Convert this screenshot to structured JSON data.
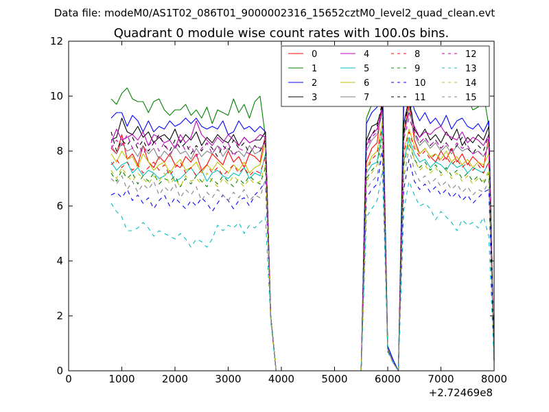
{
  "chart_data": {
    "type": "line",
    "suptitle": "Data file: modeM0/AS1T02_086T01_9000002316_15652cztM0_level2_quad_clean.evt",
    "title": "Quadrant 0 module wise count rates with 100.0s bins.",
    "xlabel": "",
    "ylabel": "",
    "xlim": [
      0,
      8000
    ],
    "ylim": [
      0,
      12
    ],
    "xticks": [
      "0",
      "1000",
      "2000",
      "3000",
      "4000",
      "5000",
      "6000",
      "7000",
      "8000"
    ],
    "yticks": [
      "0",
      "2",
      "4",
      "6",
      "8",
      "10",
      "12"
    ],
    "x_offset_label": "+2.72469e8",
    "legend_position": "top-right",
    "grid": false,
    "x": [
      800,
      900,
      1000,
      1100,
      1200,
      1300,
      1400,
      1500,
      1600,
      1700,
      1800,
      1900,
      2000,
      2100,
      2200,
      2300,
      2400,
      2500,
      2600,
      2700,
      2800,
      2900,
      3000,
      3100,
      3200,
      3300,
      3400,
      3500,
      3600,
      3700,
      3800,
      3900,
      4000,
      4500,
      5000,
      5500,
      5600,
      5700,
      5800,
      5900,
      6000,
      6100,
      6200,
      6300,
      6400,
      6500,
      6600,
      6700,
      6800,
      6900,
      7000,
      7100,
      7200,
      7300,
      7400,
      7500,
      7600,
      7700,
      7800,
      7900,
      8000
    ],
    "series": [
      {
        "name": "0",
        "color": "#ff0000",
        "style": "solid",
        "values": [
          8.1,
          7.9,
          8.6,
          7.7,
          7.9,
          7.5,
          8.2,
          7.6,
          7.4,
          7.8,
          7.6,
          7.9,
          7.5,
          7.4,
          7.8,
          7.6,
          7.9,
          7.3,
          7.5,
          7.9,
          7.7,
          7.5,
          8.0,
          7.6,
          7.8,
          7.4,
          7.9,
          7.8,
          7.6,
          8.6,
          2.0,
          0,
          0,
          0,
          0,
          0,
          7.6,
          8.1,
          8.3,
          9.8,
          0.8,
          0.3,
          0,
          8.6,
          9.8,
          8.4,
          7.9,
          8.1,
          7.8,
          7.6,
          8.0,
          7.7,
          8.1,
          7.6,
          7.9,
          7.5,
          7.8,
          7.6,
          7.4,
          8.5,
          0.4
        ]
      },
      {
        "name": "1",
        "color": "#008000",
        "style": "solid",
        "values": [
          9.9,
          9.7,
          10.1,
          10.3,
          9.9,
          9.8,
          9.8,
          9.4,
          9.8,
          9.9,
          9.5,
          9.3,
          9.5,
          9.5,
          9.7,
          9.3,
          9.5,
          9.2,
          9.6,
          9.0,
          9.5,
          9.4,
          9.3,
          9.9,
          9.4,
          9.7,
          9.2,
          9.8,
          10.0,
          8.5,
          2.0,
          0,
          0,
          0,
          0,
          0,
          9.2,
          9.7,
          10.4,
          10.7,
          0.9,
          0.4,
          0,
          10.3,
          11.4,
          10.9,
          10.2,
          10.5,
          10.0,
          10.3,
          9.8,
          10.1,
          9.9,
          10.4,
          9.7,
          9.9,
          9.5,
          9.6,
          10.1,
          8.9,
          0.4
        ]
      },
      {
        "name": "2",
        "color": "#0000ff",
        "style": "solid",
        "values": [
          9.2,
          9.4,
          9.4,
          8.9,
          9.3,
          9.1,
          8.7,
          9.1,
          8.7,
          8.9,
          8.8,
          9.1,
          8.9,
          9.0,
          9.2,
          9.0,
          9.2,
          8.9,
          8.8,
          8.9,
          8.8,
          9.1,
          8.6,
          8.7,
          9.1,
          8.8,
          8.9,
          8.7,
          8.9,
          8.7,
          2.0,
          0,
          0,
          0,
          0,
          0,
          9.0,
          9.4,
          9.6,
          10.3,
          0.9,
          0.4,
          0,
          9.6,
          10.2,
          9.5,
          9.1,
          9.4,
          9.0,
          9.2,
          8.9,
          9.3,
          8.8,
          9.1,
          9.2,
          8.9,
          8.8,
          9.0,
          8.7,
          9.1,
          0.4
        ]
      },
      {
        "name": "3",
        "color": "#000000",
        "style": "solid",
        "values": [
          8.4,
          8.5,
          9.2,
          8.7,
          8.6,
          8.9,
          8.5,
          8.7,
          8.3,
          8.5,
          8.6,
          8.4,
          8.8,
          8.3,
          8.6,
          8.4,
          8.7,
          8.2,
          8.5,
          8.3,
          8.6,
          8.4,
          8.3,
          8.6,
          8.2,
          8.5,
          8.3,
          8.4,
          8.4,
          8.7,
          2.0,
          0,
          0,
          0,
          0,
          0,
          8.4,
          8.9,
          9.0,
          9.6,
          0.8,
          0.3,
          0,
          9.0,
          9.9,
          8.8,
          8.5,
          8.8,
          8.4,
          8.6,
          8.3,
          8.7,
          8.4,
          8.8,
          8.2,
          8.5,
          8.3,
          8.6,
          8.4,
          8.9,
          0.4
        ]
      },
      {
        "name": "4",
        "color": "#bf00bf",
        "style": "solid",
        "values": [
          8.3,
          8.8,
          8.4,
          8.5,
          8.6,
          8.4,
          8.7,
          8.2,
          8.6,
          8.5,
          8.3,
          8.4,
          8.1,
          8.6,
          8.3,
          8.5,
          9.1,
          8.6,
          8.4,
          8.2,
          8.5,
          8.3,
          8.6,
          8.4,
          8.2,
          8.5,
          8.3,
          8.4,
          8.6,
          8.5,
          2.0,
          0,
          0,
          0,
          0,
          0,
          8.2,
          8.6,
          8.8,
          9.5,
          0.8,
          0.3,
          0,
          8.6,
          9.4,
          8.9,
          8.5,
          8.7,
          8.6,
          8.8,
          8.9,
          8.6,
          8.5,
          8.4,
          8.7,
          8.3,
          8.5,
          8.4,
          8.2,
          8.6,
          0.4
        ]
      },
      {
        "name": "5",
        "color": "#00bfbf",
        "style": "solid",
        "values": [
          7.6,
          7.3,
          7.5,
          7.6,
          7.2,
          7.4,
          7.1,
          7.3,
          7.2,
          7.0,
          7.1,
          7.3,
          6.9,
          7.0,
          7.2,
          7.4,
          7.1,
          7.3,
          6.9,
          7.2,
          7.3,
          7.1,
          7.0,
          7.2,
          7.1,
          7.4,
          7.0,
          7.2,
          7.1,
          7.9,
          2.0,
          0,
          0,
          0,
          0,
          0,
          7.2,
          7.5,
          7.6,
          8.8,
          0.8,
          0.3,
          0,
          7.6,
          8.5,
          7.9,
          7.6,
          7.7,
          7.4,
          7.6,
          7.5,
          7.3,
          7.6,
          7.4,
          7.5,
          7.2,
          7.4,
          7.3,
          7.2,
          7.6,
          0.4
        ]
      },
      {
        "name": "6",
        "color": "#bfbf00",
        "style": "solid",
        "values": [
          7.9,
          7.6,
          8.0,
          7.7,
          7.8,
          7.4,
          7.9,
          7.6,
          7.3,
          7.5,
          7.6,
          7.2,
          7.5,
          7.7,
          7.3,
          7.4,
          7.6,
          7.2,
          7.5,
          7.3,
          7.6,
          7.4,
          7.2,
          7.5,
          7.3,
          7.6,
          7.2,
          7.4,
          7.5,
          8.3,
          2.0,
          0,
          0,
          0,
          0,
          0,
          7.4,
          7.8,
          8.0,
          9.1,
          0.8,
          0.3,
          0,
          8.0,
          8.8,
          8.2,
          7.9,
          8.1,
          7.8,
          7.9,
          7.7,
          8.0,
          7.6,
          7.8,
          7.5,
          7.7,
          7.4,
          7.6,
          7.5,
          7.9,
          0.4
        ]
      },
      {
        "name": "7",
        "color": "#808080",
        "style": "solid",
        "values": [
          8.2,
          7.9,
          8.3,
          8.0,
          8.1,
          7.8,
          8.2,
          7.9,
          8.1,
          7.7,
          8.0,
          7.8,
          8.2,
          7.9,
          8.0,
          7.7,
          8.1,
          7.8,
          8.0,
          7.9,
          8.2,
          7.8,
          8.1,
          7.9,
          8.0,
          7.8,
          8.2,
          7.9,
          8.0,
          8.4,
          2.0,
          0,
          0,
          0,
          0,
          0,
          8.0,
          8.4,
          8.6,
          9.4,
          0.8,
          0.3,
          0,
          8.5,
          9.6,
          8.6,
          8.2,
          8.4,
          8.1,
          8.3,
          8.0,
          8.2,
          7.9,
          8.2,
          8.0,
          8.1,
          7.9,
          8.0,
          7.8,
          8.2,
          0.4
        ]
      },
      {
        "name": "8",
        "color": "#ff0000",
        "style": "dashed",
        "values": [
          7.5,
          7.7,
          7.4,
          7.6,
          7.3,
          7.5,
          7.2,
          7.4,
          7.6,
          7.3,
          7.5,
          7.1,
          7.4,
          7.6,
          7.2,
          7.4,
          7.1,
          7.3,
          7.5,
          7.2,
          7.4,
          7.1,
          7.3,
          7.5,
          7.2,
          7.4,
          7.1,
          7.3,
          7.2,
          7.8,
          2.0,
          0,
          0,
          0,
          0,
          0,
          7.3,
          7.7,
          7.9,
          8.9,
          0.8,
          0.3,
          0,
          7.9,
          8.7,
          8.1,
          7.8,
          8.0,
          7.7,
          7.9,
          7.6,
          7.8,
          7.5,
          7.7,
          7.4,
          7.6,
          7.3,
          7.5,
          7.2,
          7.6,
          0.4
        ]
      },
      {
        "name": "9",
        "color": "#008000",
        "style": "dashed",
        "values": [
          7.2,
          6.9,
          7.3,
          7.0,
          7.2,
          6.8,
          7.1,
          6.9,
          7.2,
          6.8,
          7.0,
          6.9,
          7.1,
          6.7,
          7.0,
          6.8,
          7.1,
          6.9,
          6.7,
          7.0,
          6.8,
          7.1,
          6.9,
          6.7,
          7.0,
          6.8,
          7.1,
          6.9,
          6.8,
          7.4,
          2.0,
          0,
          0,
          0,
          0,
          0,
          7.0,
          7.3,
          7.5,
          8.5,
          0.8,
          0.3,
          0,
          7.5,
          8.3,
          7.7,
          7.4,
          7.6,
          7.3,
          7.5,
          7.2,
          7.4,
          7.1,
          7.3,
          7.0,
          7.2,
          6.9,
          7.1,
          6.8,
          7.2,
          0.4
        ]
      },
      {
        "name": "10",
        "color": "#0000ff",
        "style": "dashed",
        "values": [
          6.4,
          6.5,
          6.3,
          6.6,
          6.2,
          6.4,
          6.1,
          6.3,
          5.9,
          6.2,
          6.4,
          6.0,
          6.3,
          6.1,
          5.9,
          6.2,
          6.0,
          6.3,
          6.1,
          5.8,
          6.1,
          6.4,
          6.2,
          5.9,
          6.2,
          6.3,
          6.0,
          6.4,
          6.6,
          6.9,
          2.0,
          0,
          0,
          0,
          0,
          0,
          6.3,
          6.6,
          6.8,
          8.0,
          0.7,
          0.3,
          0,
          6.6,
          7.7,
          6.9,
          6.6,
          6.8,
          6.5,
          6.7,
          6.4,
          6.6,
          6.3,
          6.5,
          6.2,
          6.4,
          6.1,
          6.3,
          6.5,
          6.6,
          0.4
        ]
      },
      {
        "name": "11",
        "color": "#000000",
        "style": "dashed",
        "values": [
          8.7,
          8.0,
          8.4,
          8.2,
          8.5,
          8.1,
          8.4,
          8.0,
          8.3,
          8.6,
          8.2,
          8.0,
          8.4,
          8.1,
          8.3,
          7.9,
          8.2,
          8.0,
          8.3,
          8.1,
          7.8,
          8.2,
          8.0,
          8.4,
          8.1,
          8.3,
          7.9,
          8.2,
          8.0,
          8.4,
          2.0,
          0,
          0,
          0,
          0,
          0,
          8.3,
          8.6,
          8.9,
          9.8,
          0.8,
          0.3,
          0,
          8.6,
          10.1,
          8.7,
          8.3,
          8.5,
          8.2,
          8.4,
          8.1,
          8.3,
          8.0,
          8.2,
          8.5,
          8.1,
          7.9,
          8.2,
          8.0,
          8.6,
          0.4
        ]
      },
      {
        "name": "12",
        "color": "#bf00bf",
        "style": "dashed",
        "values": [
          8.1,
          8.4,
          8.2,
          8.6,
          8.1,
          8.3,
          7.9,
          8.2,
          8.4,
          8.0,
          8.3,
          7.9,
          8.1,
          8.4,
          8.0,
          8.2,
          7.8,
          8.1,
          8.3,
          7.9,
          8.2,
          8.0,
          8.3,
          7.8,
          8.1,
          8.0,
          7.9,
          8.2,
          8.1,
          8.3,
          2.0,
          0,
          0,
          0,
          0,
          0,
          8.1,
          8.5,
          8.7,
          9.7,
          0.8,
          0.3,
          0,
          8.4,
          9.2,
          8.7,
          8.3,
          8.5,
          8.2,
          8.4,
          8.1,
          8.3,
          8.0,
          8.3,
          8.1,
          8.2,
          7.9,
          8.0,
          7.8,
          8.1,
          0.4
        ]
      },
      {
        "name": "13",
        "color": "#00bfbf",
        "style": "dashed",
        "values": [
          6.1,
          5.8,
          5.6,
          5.1,
          5.1,
          5.2,
          5.4,
          5.2,
          4.9,
          5.1,
          5.0,
          4.9,
          4.8,
          5.0,
          4.8,
          4.5,
          4.8,
          4.7,
          4.5,
          4.8,
          5.3,
          5.1,
          5.3,
          5.2,
          5.4,
          5.0,
          5.3,
          5.2,
          5.4,
          5.6,
          1.8,
          0,
          0,
          0,
          0,
          0,
          5.6,
          5.9,
          6.2,
          7.3,
          0.7,
          0.3,
          0,
          5.8,
          6.9,
          6.4,
          6.0,
          6.1,
          5.9,
          5.5,
          5.8,
          5.6,
          5.4,
          5.1,
          5.5,
          5.3,
          5.4,
          5.2,
          5.6,
          4.9,
          0.3
        ]
      },
      {
        "name": "14",
        "color": "#bfbf00",
        "style": "dashed",
        "values": [
          7.3,
          7.0,
          7.4,
          7.1,
          6.9,
          7.2,
          7.0,
          6.8,
          7.1,
          6.9,
          7.2,
          6.8,
          7.0,
          6.7,
          7.1,
          6.9,
          7.0,
          6.8,
          7.2,
          6.9,
          6.7,
          7.0,
          6.8,
          7.1,
          6.9,
          6.7,
          7.0,
          6.8,
          6.9,
          7.5,
          2.0,
          0,
          0,
          0,
          0,
          0,
          6.9,
          7.2,
          7.5,
          8.6,
          0.8,
          0.3,
          0,
          7.4,
          8.4,
          7.7,
          7.3,
          7.5,
          7.2,
          7.4,
          7.1,
          7.3,
          7.0,
          7.2,
          6.9,
          7.1,
          6.8,
          7.0,
          6.9,
          7.3,
          0.4
        ]
      },
      {
        "name": "15",
        "color": "#808080",
        "style": "dashed",
        "values": [
          7.0,
          6.8,
          7.1,
          6.6,
          6.9,
          6.5,
          6.8,
          6.6,
          6.9,
          6.4,
          6.7,
          6.5,
          6.8,
          6.3,
          6.6,
          6.4,
          6.7,
          6.2,
          6.5,
          6.3,
          6.6,
          6.4,
          6.2,
          6.5,
          6.3,
          6.6,
          6.2,
          6.4,
          6.3,
          7.0,
          2.0,
          0,
          0,
          0,
          0,
          0,
          6.6,
          6.9,
          7.1,
          8.2,
          0.8,
          0.3,
          0,
          7.0,
          8.1,
          7.3,
          6.9,
          7.1,
          6.8,
          7.0,
          6.7,
          6.9,
          6.6,
          6.8,
          6.5,
          6.7,
          6.4,
          6.6,
          6.5,
          6.9,
          0.4
        ]
      }
    ]
  }
}
